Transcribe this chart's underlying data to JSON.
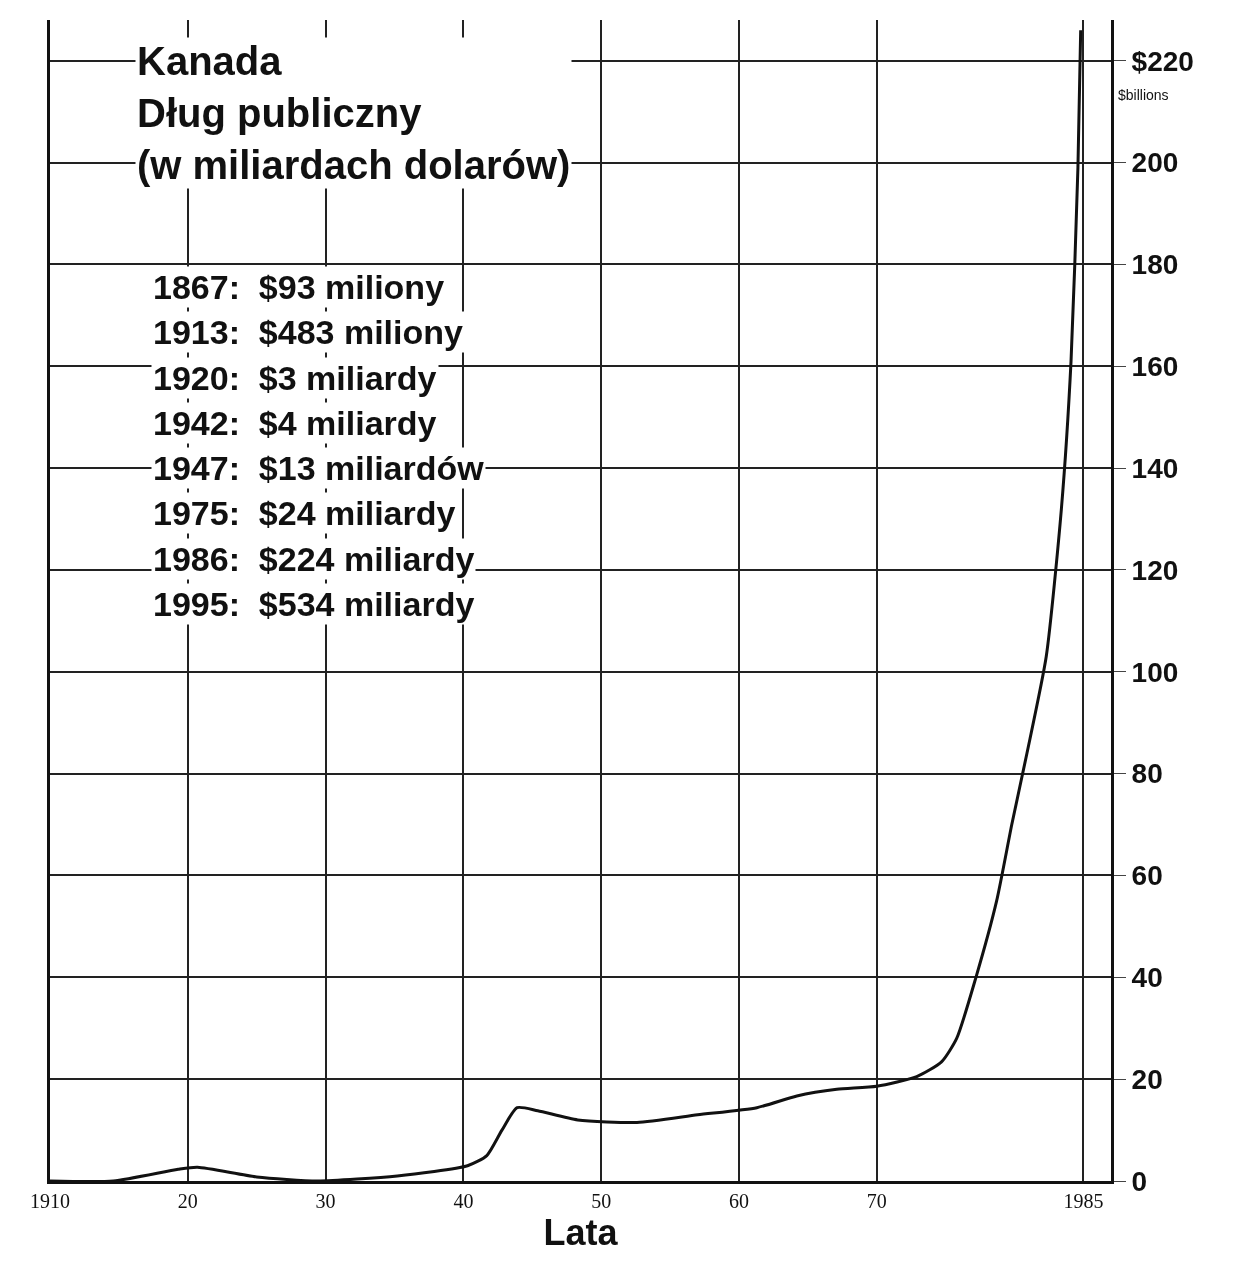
{
  "chart_data": {
    "type": "line",
    "title": "Kanada\nDług publiczny\n(w miliardach dolarów)",
    "xlabel": "Lata",
    "ylabel": "$billions",
    "annotations": [
      "1867:  $93 miliony",
      "1913:  $483 miliony",
      "1920:  $3 miliardy",
      "1942:  $4 miliardy",
      "1947:  $13 miliardów",
      "1975:  $24 miliardy",
      "1986:  $224 miliardy",
      "1995:  $534 miliardy"
    ],
    "x": [
      1910,
      1914.6,
      1919.3,
      1920.7,
      1925,
      1929.4,
      1935.2,
      1940.3,
      1941.7,
      1942.8,
      1943.9,
      1945.4,
      1948.3,
      1952.6,
      1957,
      1961.3,
      1964.2,
      1967.1,
      1970,
      1972.9,
      1974.7,
      1975.8,
      1977.2,
      1978.7,
      1979.8,
      1980.9,
      1982.3,
      1983.4,
      1984.1,
      1984.6,
      1984.8
    ],
    "series": [
      {
        "color": "#111111",
        "values": [
          0,
          0,
          2.3,
          2.7,
          0.8,
          0,
          1,
          3,
          5,
          10,
          14.4,
          13.8,
          12,
          11.5,
          13,
          14.4,
          16.7,
          18,
          18.6,
          20.5,
          23.4,
          28,
          40,
          55,
          70,
          84,
          103,
          132,
          161,
          199,
          226
        ]
      }
    ],
    "xlim": [
      1910,
      1987
    ],
    "xticks": [
      1910,
      {
        "value": 1920,
        "label": "20"
      },
      {
        "value": 1930,
        "label": "30"
      },
      {
        "value": 1940,
        "label": "40"
      },
      {
        "value": 1950,
        "label": "50"
      },
      {
        "value": 1960,
        "label": "60"
      },
      {
        "value": 1970,
        "label": "70"
      },
      1985
    ],
    "ylim": [
      0,
      228
    ],
    "yticks": [
      0,
      20,
      40,
      60,
      80,
      100,
      120,
      140,
      160,
      180,
      200,
      {
        "value": 220,
        "label": "$220"
      }
    ],
    "grid": true,
    "marker": "none",
    "line_style": "solid"
  }
}
